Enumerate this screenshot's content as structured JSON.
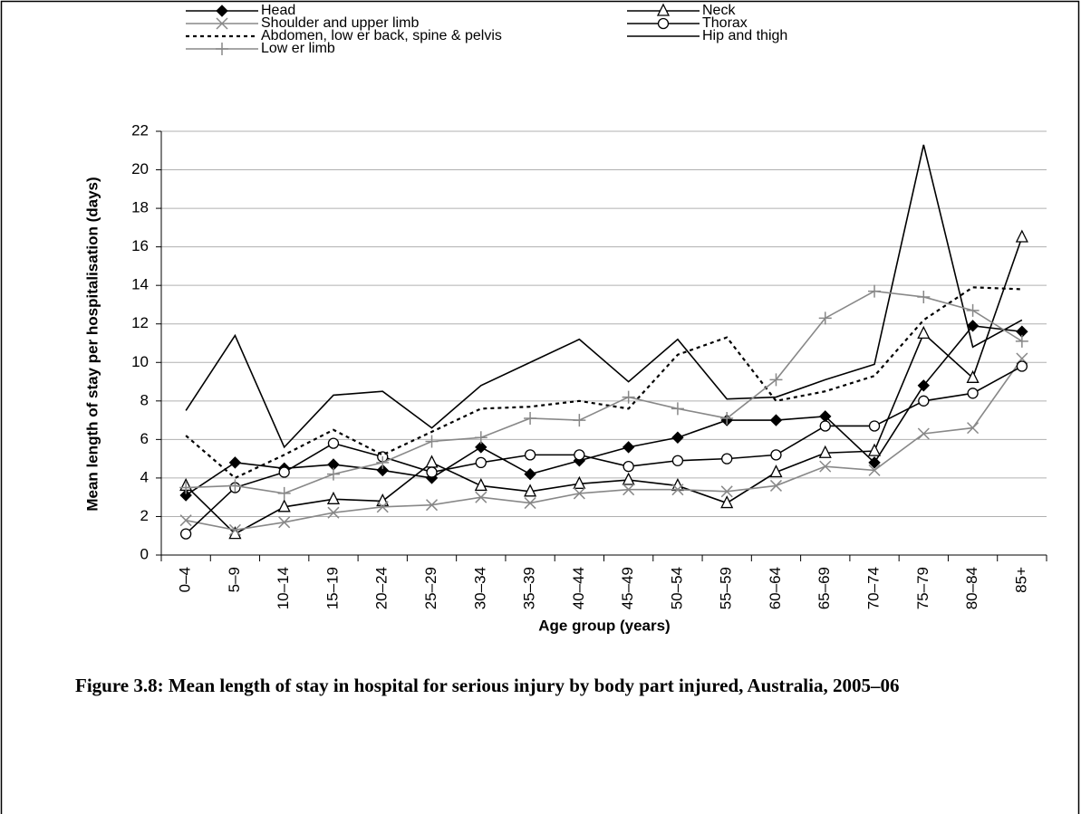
{
  "chart_data": {
    "type": "line",
    "title": "Figure 3.8: Mean length of stay in hospital for serious injury by body part injured, Australia, 2005–06",
    "x_label": "Age group (years)",
    "y_label": "Mean length of stay per hospitalisation (days)",
    "categories": [
      "0–4",
      "5–9",
      "10–14",
      "15–19",
      "20–24",
      "25–29",
      "30–34",
      "35–39",
      "40–44",
      "45–49",
      "50–54",
      "55–59",
      "60–64",
      "65–69",
      "70–74",
      "75–79",
      "80–84",
      "85+"
    ],
    "ylim": [
      0,
      22
    ],
    "yticks": [
      0,
      2,
      4,
      6,
      8,
      10,
      12,
      14,
      16,
      18,
      20,
      22
    ],
    "grid": true,
    "series": [
      {
        "name": "Head",
        "color": "#000000",
        "marker": "diamond",
        "dash": "solid",
        "values": [
          3.1,
          4.8,
          4.5,
          4.7,
          4.4,
          4.0,
          5.6,
          4.2,
          4.9,
          5.6,
          6.1,
          7.0,
          7.0,
          7.2,
          4.8,
          8.8,
          11.9,
          11.6
        ]
      },
      {
        "name": "Neck",
        "color": "#000000",
        "marker": "triangle",
        "dash": "solid",
        "values": [
          3.6,
          1.1,
          2.5,
          2.9,
          2.8,
          4.8,
          3.6,
          3.3,
          3.7,
          3.9,
          3.6,
          2.7,
          4.3,
          5.3,
          5.4,
          11.5,
          9.2,
          16.5
        ]
      },
      {
        "name": "Shoulder and upper limb",
        "color": "#888888",
        "marker": "x",
        "dash": "solid",
        "values": [
          1.8,
          1.3,
          1.7,
          2.2,
          2.5,
          2.6,
          3.0,
          2.7,
          3.2,
          3.4,
          3.4,
          3.3,
          3.6,
          4.6,
          4.4,
          6.3,
          6.6,
          10.2
        ]
      },
      {
        "name": "Thorax",
        "color": "#000000",
        "marker": "circle",
        "dash": "solid",
        "values": [
          1.1,
          3.5,
          4.3,
          5.8,
          5.1,
          4.3,
          4.8,
          5.2,
          5.2,
          4.6,
          4.9,
          5.0,
          5.2,
          6.7,
          6.7,
          8.0,
          8.4,
          9.8
        ]
      },
      {
        "name": "Abdomen, low er back, spine & pelvis",
        "color": "#000000",
        "marker": "none",
        "dash": "dotted",
        "values": [
          6.2,
          4.0,
          5.2,
          6.5,
          5.2,
          6.4,
          7.6,
          7.7,
          8.0,
          7.6,
          10.4,
          11.3,
          8.0,
          8.5,
          9.3,
          12.2,
          13.9,
          13.8
        ]
      },
      {
        "name": "Hip and thigh",
        "color": "#000000",
        "marker": "none",
        "dash": "solid",
        "values": [
          7.5,
          11.4,
          5.6,
          8.3,
          8.5,
          6.6,
          8.8,
          10.0,
          11.2,
          9.0,
          11.2,
          8.1,
          8.2,
          9.1,
          9.9,
          21.3,
          10.8,
          12.2
        ]
      },
      {
        "name": "Low er limb",
        "color": "#888888",
        "marker": "plus",
        "dash": "solid",
        "values": [
          3.5,
          3.6,
          3.2,
          4.2,
          4.8,
          5.9,
          6.1,
          7.1,
          7.0,
          8.2,
          7.6,
          7.1,
          9.1,
          12.3,
          13.7,
          13.4,
          12.7,
          11.1
        ]
      }
    ]
  }
}
